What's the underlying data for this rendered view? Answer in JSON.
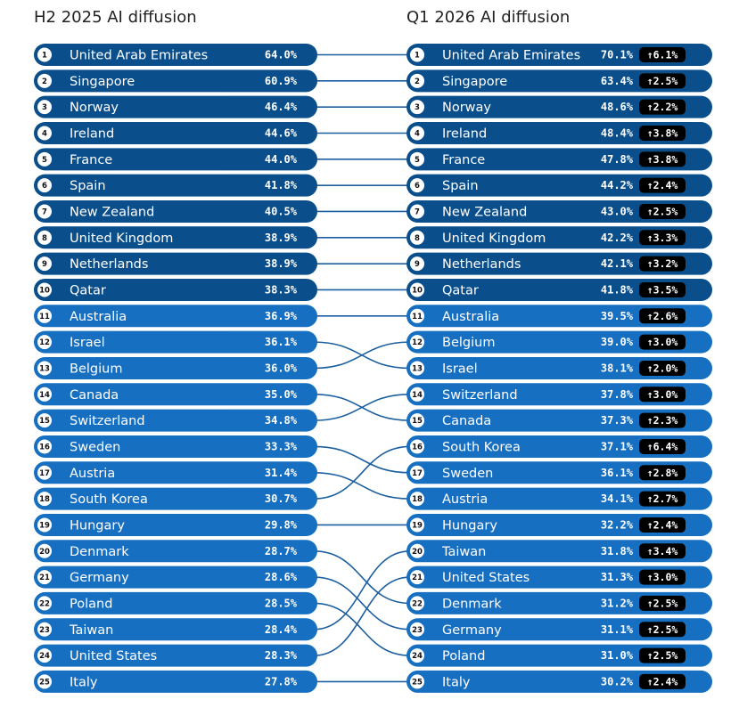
{
  "titles": {
    "left": "H2 2025 AI diffusion",
    "right": "Q1 2026 AI diffusion"
  },
  "colors": {
    "dark": "#0a4f8c",
    "light": "#176fc1",
    "line": "#1c5f9e",
    "badge": "#000000"
  },
  "chart_data": {
    "type": "table",
    "left_series_name": "H2 2025 AI diffusion",
    "right_series_name": "Q1 2026 AI diffusion",
    "left": [
      {
        "rank": 1,
        "country": "United Arab Emirates",
        "value": "64.0%"
      },
      {
        "rank": 2,
        "country": "Singapore",
        "value": "60.9%"
      },
      {
        "rank": 3,
        "country": "Norway",
        "value": "46.4%"
      },
      {
        "rank": 4,
        "country": "Ireland",
        "value": "44.6%"
      },
      {
        "rank": 5,
        "country": "France",
        "value": "44.0%"
      },
      {
        "rank": 6,
        "country": "Spain",
        "value": "41.8%"
      },
      {
        "rank": 7,
        "country": "New Zealand",
        "value": "40.5%"
      },
      {
        "rank": 8,
        "country": "United Kingdom",
        "value": "38.9%"
      },
      {
        "rank": 9,
        "country": "Netherlands",
        "value": "38.9%"
      },
      {
        "rank": 10,
        "country": "Qatar",
        "value": "38.3%"
      },
      {
        "rank": 11,
        "country": "Australia",
        "value": "36.9%"
      },
      {
        "rank": 12,
        "country": "Israel",
        "value": "36.1%"
      },
      {
        "rank": 13,
        "country": "Belgium",
        "value": "36.0%"
      },
      {
        "rank": 14,
        "country": "Canada",
        "value": "35.0%"
      },
      {
        "rank": 15,
        "country": "Switzerland",
        "value": "34.8%"
      },
      {
        "rank": 16,
        "country": "Sweden",
        "value": "33.3%"
      },
      {
        "rank": 17,
        "country": "Austria",
        "value": "31.4%"
      },
      {
        "rank": 18,
        "country": "South Korea",
        "value": "30.7%"
      },
      {
        "rank": 19,
        "country": "Hungary",
        "value": "29.8%"
      },
      {
        "rank": 20,
        "country": "Denmark",
        "value": "28.7%"
      },
      {
        "rank": 21,
        "country": "Germany",
        "value": "28.6%"
      },
      {
        "rank": 22,
        "country": "Poland",
        "value": "28.5%"
      },
      {
        "rank": 23,
        "country": "Taiwan",
        "value": "28.4%"
      },
      {
        "rank": 24,
        "country": "United States",
        "value": "28.3%"
      },
      {
        "rank": 25,
        "country": "Italy",
        "value": "27.8%"
      }
    ],
    "right": [
      {
        "rank": 1,
        "country": "United Arab Emirates",
        "value": "70.1%",
        "change": "↑6.1%"
      },
      {
        "rank": 2,
        "country": "Singapore",
        "value": "63.4%",
        "change": "↑2.5%"
      },
      {
        "rank": 3,
        "country": "Norway",
        "value": "48.6%",
        "change": "↑2.2%"
      },
      {
        "rank": 4,
        "country": "Ireland",
        "value": "48.4%",
        "change": "↑3.8%"
      },
      {
        "rank": 5,
        "country": "France",
        "value": "47.8%",
        "change": "↑3.8%"
      },
      {
        "rank": 6,
        "country": "Spain",
        "value": "44.2%",
        "change": "↑2.4%"
      },
      {
        "rank": 7,
        "country": "New Zealand",
        "value": "43.0%",
        "change": "↑2.5%"
      },
      {
        "rank": 8,
        "country": "United Kingdom",
        "value": "42.2%",
        "change": "↑3.3%"
      },
      {
        "rank": 9,
        "country": "Netherlands",
        "value": "42.1%",
        "change": "↑3.2%"
      },
      {
        "rank": 10,
        "country": "Qatar",
        "value": "41.8%",
        "change": "↑3.5%"
      },
      {
        "rank": 11,
        "country": "Australia",
        "value": "39.5%",
        "change": "↑2.6%"
      },
      {
        "rank": 12,
        "country": "Belgium",
        "value": "39.0%",
        "change": "↑3.0%"
      },
      {
        "rank": 13,
        "country": "Israel",
        "value": "38.1%",
        "change": "↑2.0%"
      },
      {
        "rank": 14,
        "country": "Switzerland",
        "value": "37.8%",
        "change": "↑3.0%"
      },
      {
        "rank": 15,
        "country": "Canada",
        "value": "37.3%",
        "change": "↑2.3%"
      },
      {
        "rank": 16,
        "country": "South Korea",
        "value": "37.1%",
        "change": "↑6.4%"
      },
      {
        "rank": 17,
        "country": "Sweden",
        "value": "36.1%",
        "change": "↑2.8%"
      },
      {
        "rank": 18,
        "country": "Austria",
        "value": "34.1%",
        "change": "↑2.7%"
      },
      {
        "rank": 19,
        "country": "Hungary",
        "value": "32.2%",
        "change": "↑2.4%"
      },
      {
        "rank": 20,
        "country": "Taiwan",
        "value": "31.8%",
        "change": "↑3.4%"
      },
      {
        "rank": 21,
        "country": "United States",
        "value": "31.3%",
        "change": "↑3.0%"
      },
      {
        "rank": 22,
        "country": "Denmark",
        "value": "31.2%",
        "change": "↑2.5%"
      },
      {
        "rank": 23,
        "country": "Germany",
        "value": "31.1%",
        "change": "↑2.5%"
      },
      {
        "rank": 24,
        "country": "Poland",
        "value": "31.0%",
        "change": "↑2.5%"
      },
      {
        "rank": 25,
        "country": "Italy",
        "value": "30.2%",
        "change": "↑2.4%"
      }
    ]
  }
}
